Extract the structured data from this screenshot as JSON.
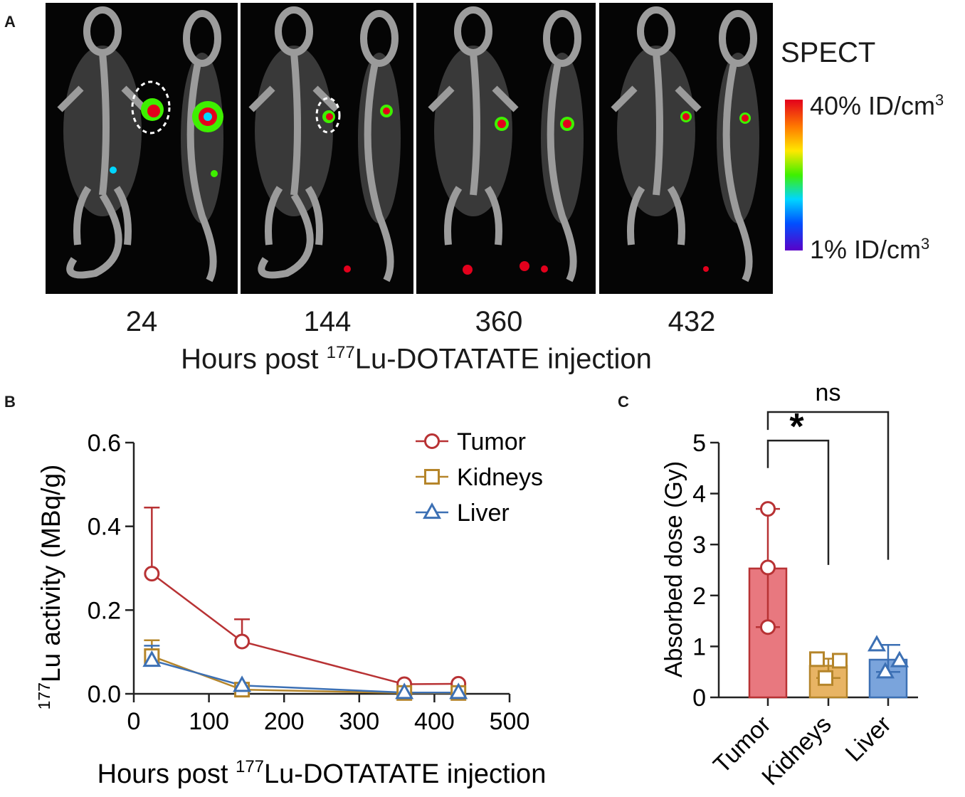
{
  "panels": {
    "a_letter": "A",
    "b_letter": "B",
    "c_letter": "C"
  },
  "panel_a": {
    "time_points": [
      "24",
      "144",
      "360",
      "432"
    ],
    "xlabel_prefix": "Hours post ",
    "xlabel_sup": "177",
    "xlabel_suffix": "Lu-DOTATATE injection",
    "colorbar_title": "SPECT",
    "colorbar_max": "40% ID/cm",
    "colorbar_min": "1% ID/cm",
    "colorbar_unit_sup": "3",
    "colors": [
      "#e3001c",
      "#ff7a00",
      "#ffe800",
      "#3ef000",
      "#00d6ff",
      "#0050ff",
      "#5a00c8"
    ]
  },
  "chart_data": [
    {
      "type": "line",
      "panel": "B",
      "xlabel_prefix": "Hours post ",
      "xlabel_sup": "177",
      "xlabel_suffix": "Lu-DOTATATE injection",
      "ylabel_sup": "177",
      "ylabel_suffix": "Lu activity (MBq/g)",
      "xlim": [
        0,
        500
      ],
      "ylim": [
        0,
        0.6
      ],
      "xticks": [
        "0",
        "100",
        "200",
        "300",
        "400",
        "500"
      ],
      "yticks": [
        "0.0",
        "0.2",
        "0.4",
        "0.6"
      ],
      "x": [
        24,
        144,
        360,
        432
      ],
      "series": [
        {
          "name": "Tumor",
          "marker": "circle",
          "color": "#b83234",
          "values": [
            0.287,
            0.125,
            0.023,
            0.024
          ],
          "err_upper": [
            0.445,
            0.178,
            0.0,
            0.0
          ]
        },
        {
          "name": "Kidneys",
          "marker": "square",
          "color": "#b5852a",
          "values": [
            0.09,
            0.01,
            0.002,
            0.002
          ],
          "err_upper": [
            0.128,
            0.0,
            0.0,
            0.0
          ]
        },
        {
          "name": "Liver",
          "marker": "triangle",
          "color": "#3c70b4",
          "values": [
            0.08,
            0.02,
            0.003,
            0.003
          ],
          "err_upper": [
            0.115,
            0.0,
            0.0,
            0.0
          ]
        }
      ],
      "legend_position": "top-right"
    },
    {
      "type": "bar",
      "panel": "C",
      "ylabel": "Absorbed dose (Gy)",
      "ylim": [
        0,
        5
      ],
      "yticks": [
        "0",
        "1",
        "2",
        "3",
        "4",
        "5"
      ],
      "categories": [
        "Tumor",
        "Kidneys",
        "Liver"
      ],
      "values": [
        2.53,
        0.62,
        0.74
      ],
      "err_low": [
        1.38,
        0.38,
        0.5
      ],
      "err_high": [
        3.7,
        0.76,
        1.03
      ],
      "points": [
        [
          3.7,
          2.55,
          1.38
        ],
        [
          0.75,
          0.72,
          0.38
        ],
        [
          1.03,
          0.72,
          0.5
        ]
      ],
      "bar_colors": [
        "#e8787f",
        "#e8b464",
        "#7aa4dc"
      ],
      "edge_colors": [
        "#b83234",
        "#b5852a",
        "#3c70b4"
      ],
      "markers": [
        "circle",
        "square",
        "triangle"
      ],
      "significance": [
        {
          "from": "Tumor",
          "to": "Kidneys",
          "label": "*"
        },
        {
          "from": "Tumor",
          "to": "Liver",
          "label": "ns"
        }
      ]
    }
  ]
}
